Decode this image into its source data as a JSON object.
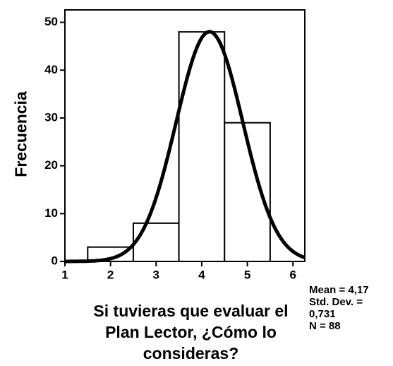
{
  "chart_data": {
    "type": "histogram",
    "bins": [
      1.5,
      2.5,
      3.5,
      4.5,
      5.5
    ],
    "values": [
      3,
      8,
      48,
      29
    ],
    "color": "#ffffff",
    "xlim": [
      1,
      6.26
    ],
    "xticks": [
      1,
      2,
      3,
      4,
      5,
      6
    ],
    "ylim": [
      0,
      52.6
    ],
    "yticks": [
      0,
      10,
      20,
      30,
      40,
      50
    ],
    "x_label": "Si tuvieras que evaluar el Plan Lector, ¿Cómo lo consideras?",
    "y_label": "Frecuencia",
    "normal_curve": {
      "mean": {
        "value": 4.17,
        "label": "Mean = 4,17"
      },
      "std": {
        "value": 0.731,
        "label": "Std. Dev. = 0,731"
      },
      "n": {
        "value": 88,
        "label": "N = 88"
      }
    }
  }
}
